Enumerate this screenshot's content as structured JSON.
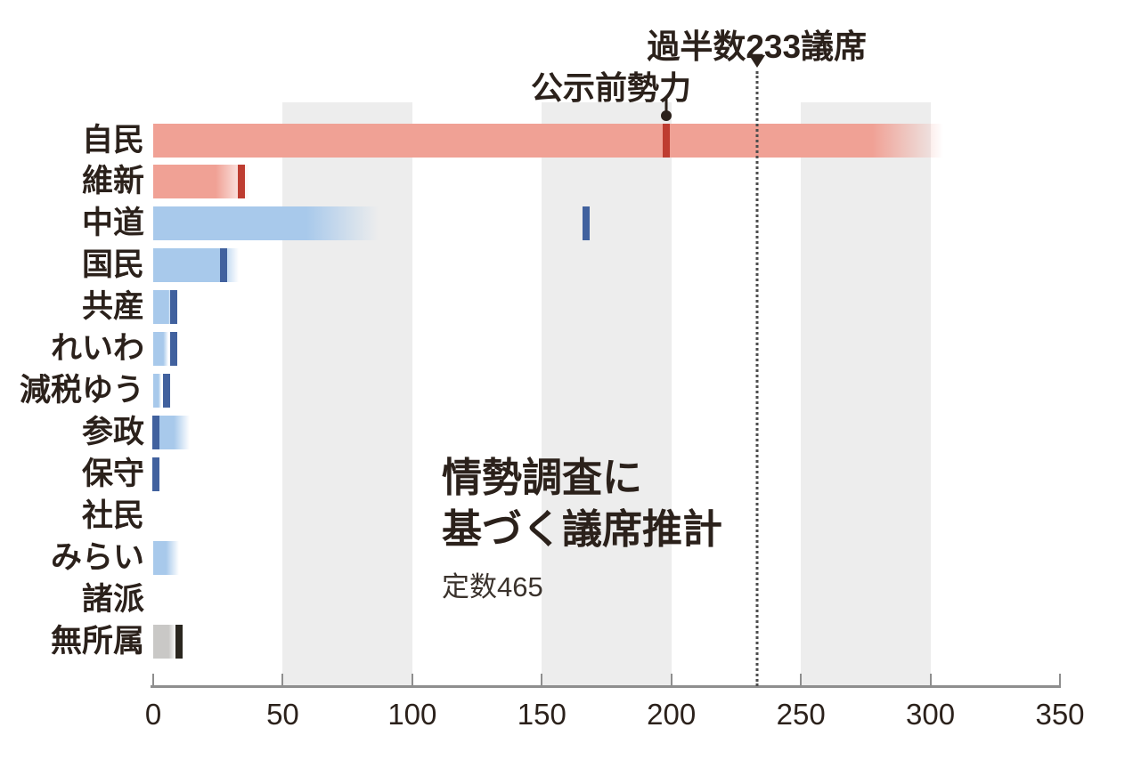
{
  "chart_data": {
    "type": "bar",
    "orientation": "horizontal",
    "title": "情勢調査に基づく議席推計",
    "title_lines": [
      "情勢調査に",
      "基づく議席推計"
    ],
    "subtitle": "定数465",
    "total_seats": 465,
    "xlabel": "議席",
    "x_axis": {
      "min": 0,
      "max": 350,
      "ticks": [
        0,
        50,
        100,
        150,
        200,
        250,
        300,
        350
      ]
    },
    "majority": {
      "label": "過半数233議席",
      "value": 233
    },
    "marker_legend": {
      "label": "公示前勢力",
      "points_to_party": "自民"
    },
    "gray_bands": [
      [
        50,
        100
      ],
      [
        150,
        200
      ],
      [
        250,
        300
      ]
    ],
    "rows": [
      {
        "id": "jimin",
        "party": "自民",
        "estimate_low": 279,
        "estimate_high": 305,
        "pre_election": 198,
        "bar_color": "#f0a195",
        "marker_color": "#be3c30"
      },
      {
        "id": "ishin",
        "party": "維新",
        "estimate_low": 24,
        "estimate_high": 37,
        "pre_election": 34,
        "bar_color": "#f0a195",
        "marker_color": "#be3c30"
      },
      {
        "id": "chudo",
        "party": "中道",
        "estimate_low": 59,
        "estimate_high": 87,
        "pre_election": 167,
        "bar_color": "#a8c9eb",
        "marker_color": "#41619e"
      },
      {
        "id": "kokumin",
        "party": "国民",
        "estimate_low": 26,
        "estimate_high": 33,
        "pre_election": 27,
        "bar_color": "#a8c9eb",
        "marker_color": "#41619e"
      },
      {
        "id": "kyosan",
        "party": "共産",
        "estimate_low": 6,
        "estimate_high": 7,
        "pre_election": 8,
        "bar_color": "#a8c9eb",
        "marker_color": "#41619e"
      },
      {
        "id": "reiwa",
        "party": "れいわ",
        "estimate_low": 4,
        "estimate_high": 6,
        "pre_election": 8,
        "bar_color": "#a8c9eb",
        "marker_color": "#41619e"
      },
      {
        "id": "genzei-yu",
        "party": "減税ゆう",
        "estimate_low": 2,
        "estimate_high": 3,
        "pre_election": 5,
        "bar_color": "#a8c9eb",
        "marker_color": "#41619e"
      },
      {
        "id": "sansei",
        "party": "参政",
        "estimate_low": 8,
        "estimate_high": 14,
        "pre_election": 1,
        "bar_color": "#a8c9eb",
        "marker_color": "#41619e"
      },
      {
        "id": "hoshu",
        "party": "保守",
        "estimate_low": 0,
        "estimate_high": 0,
        "pre_election": 1,
        "bar_color": "#a8c9eb",
        "marker_color": "#41619e"
      },
      {
        "id": "shamin",
        "party": "社民",
        "estimate_low": 0,
        "estimate_high": 0,
        "pre_election": null,
        "bar_color": "#a8c9eb",
        "marker_color": "#41619e"
      },
      {
        "id": "mirai",
        "party": "みらい",
        "estimate_low": 5,
        "estimate_high": 10,
        "pre_election": null,
        "bar_color": "#a8c9eb",
        "marker_color": "#41619e"
      },
      {
        "id": "shoha",
        "party": "諸派",
        "estimate_low": 0,
        "estimate_high": 0,
        "pre_election": null,
        "bar_color": "#a8c9eb",
        "marker_color": "#41619e"
      },
      {
        "id": "mushozoku",
        "party": "無所属",
        "estimate_low": 6,
        "estimate_high": 9,
        "pre_election": 10,
        "bar_color": "#c9c8c6",
        "marker_color": "#2a261f"
      }
    ]
  },
  "colors": {
    "ruling_bar": "#f0a195",
    "ruling_marker": "#be3c30",
    "opposition_bar": "#a8c9eb",
    "opposition_marker": "#41619e",
    "independent_bar": "#c9c8c6",
    "independent_marker": "#2a261f",
    "grid_band": "#ededed",
    "axis": "#8e8e8e",
    "text": "#2b211b"
  }
}
